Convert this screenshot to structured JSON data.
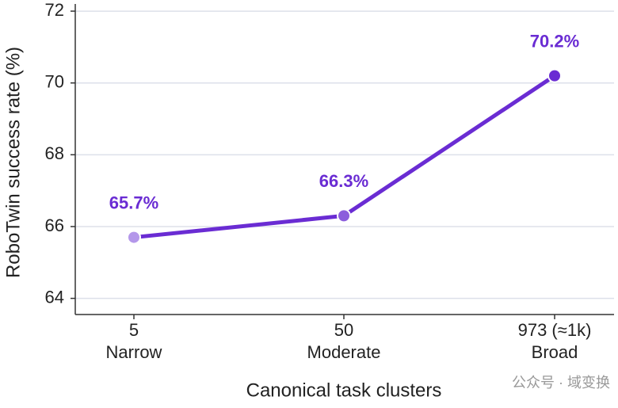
{
  "chart_data": {
    "type": "line",
    "categories": [
      "5",
      "50",
      "973 (≈1k)"
    ],
    "category_descriptions": [
      "Narrow",
      "Moderate",
      "Broad"
    ],
    "series": [
      {
        "name": "RoboTwin success rate",
        "color": "#6a2cd3",
        "values": [
          65.7,
          66.3,
          70.2
        ],
        "value_labels": [
          "65.7%",
          "66.3%",
          "70.2%"
        ],
        "point_colors": [
          "#b497ea",
          "#8c5edc",
          "#6a2cd3"
        ]
      }
    ],
    "xlabel": "Canonical task clusters",
    "ylabel": "RoboTwin success rate (%)",
    "ylim": [
      63.55,
      72.2
    ],
    "yticks": [
      64,
      66,
      68,
      70,
      72
    ],
    "grid": true,
    "watermark": "公众号 · 域变换"
  }
}
